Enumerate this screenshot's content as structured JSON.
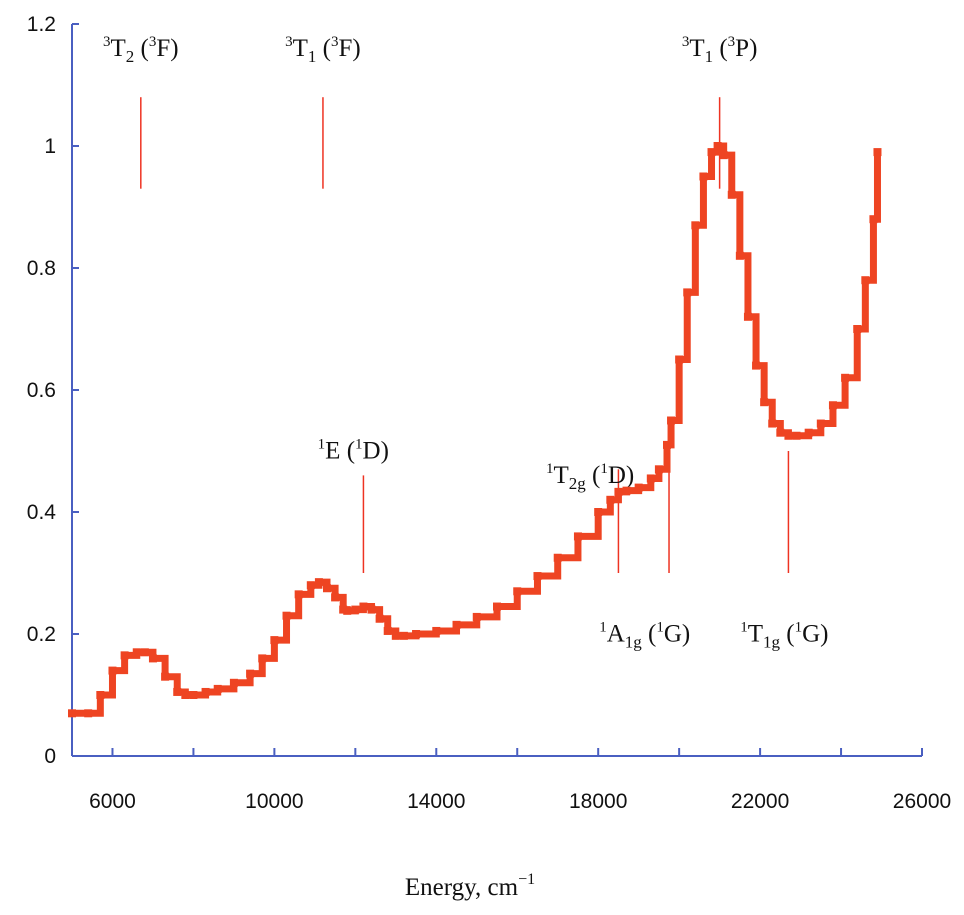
{
  "chart_data": {
    "type": "line",
    "title": "",
    "xlabel": "Energy, cm",
    "xlabel_sup": "−1",
    "ylabel": "",
    "xlim": [
      5000,
      26000
    ],
    "ylim": [
      0,
      1.2
    ],
    "x_ticks": [
      6000,
      10000,
      14000,
      18000,
      22000,
      26000
    ],
    "x_tick_labels": [
      "6000",
      "10000",
      "14000",
      "18000",
      "22000",
      "26000"
    ],
    "y_ticks": [
      0,
      0.2,
      0.4,
      0.6,
      0.8,
      1,
      1.2
    ],
    "y_tick_labels": [
      "0",
      "0.2",
      "0.4",
      "0.6",
      "0.8",
      "1",
      "1.2"
    ],
    "grid": false,
    "colors": {
      "series": "#ee4422",
      "marker": "#ee4422",
      "axis": "#4a5fc1"
    },
    "series": [
      {
        "x": [
          5000,
          5400,
          5700,
          6000,
          6300,
          6600,
          6800,
          7000,
          7300,
          7600,
          7800,
          8000,
          8300,
          8600,
          9000,
          9400,
          9700,
          10000,
          10300,
          10600,
          10900,
          11100,
          11300,
          11500,
          11700,
          11800,
          12000,
          12200,
          12400,
          12600,
          12800,
          13000,
          13200,
          13500,
          14000,
          14500,
          15000,
          15500,
          16000,
          16500,
          17000,
          17500,
          18000,
          18300,
          18500,
          18700,
          19000,
          19300,
          19500,
          19700,
          19800,
          20000,
          20200,
          20400,
          20600,
          20800,
          20950,
          21100,
          21300,
          21500,
          21700,
          21900,
          22100,
          22300,
          22500,
          22700,
          22900,
          23200,
          23500,
          23800,
          24100,
          24400,
          24600,
          24800,
          24900
        ],
        "y": [
          0.07,
          0.07,
          0.1,
          0.14,
          0.165,
          0.17,
          0.17,
          0.16,
          0.13,
          0.105,
          0.1,
          0.1,
          0.105,
          0.11,
          0.12,
          0.135,
          0.16,
          0.19,
          0.23,
          0.265,
          0.28,
          0.285,
          0.275,
          0.26,
          0.24,
          0.238,
          0.24,
          0.245,
          0.24,
          0.225,
          0.205,
          0.197,
          0.197,
          0.2,
          0.205,
          0.215,
          0.228,
          0.245,
          0.27,
          0.295,
          0.325,
          0.36,
          0.4,
          0.42,
          0.433,
          0.435,
          0.44,
          0.455,
          0.47,
          0.51,
          0.55,
          0.65,
          0.76,
          0.87,
          0.95,
          0.99,
          1.0,
          0.985,
          0.92,
          0.82,
          0.72,
          0.64,
          0.58,
          0.545,
          0.53,
          0.525,
          0.525,
          0.53,
          0.545,
          0.575,
          0.62,
          0.7,
          0.78,
          0.88,
          0.99
        ]
      }
    ],
    "annotations": [
      {
        "term": "³T₂ (³F)",
        "x": 6700,
        "line": [
          0.93,
          1.08
        ],
        "label_pos": [
          0.65,
          1.2
        ],
        "sup1": "3",
        "letter": "T",
        "sub": "2",
        "open": " (",
        "sup2": "3",
        "close": "F)"
      },
      {
        "term": "³T₁ (³F)",
        "x": 11200,
        "line": [
          0.93,
          1.08
        ],
        "label_pos": [
          11200,
          1.2
        ],
        "sup1": "3",
        "letter": "T",
        "sub": "1",
        "open": " (",
        "sup2": "3",
        "close": "F)"
      },
      {
        "term": "³T₁ (³P)",
        "x": 21000,
        "line": [
          0.93,
          1.08
        ],
        "label_pos": [
          21000,
          1.2
        ],
        "sup1": "3",
        "letter": "T",
        "sub": "1",
        "open": " (",
        "sup2": "3",
        "close": "P)"
      },
      {
        "term": "¹E (¹D)",
        "x": 12200,
        "line": [
          0.3,
          0.46
        ],
        "label_pos": [
          11950,
          0.54
        ],
        "sup1": "1",
        "letter": "E",
        "sub": "",
        "open": " (",
        "sup2": "1",
        "close": "D)"
      },
      {
        "term": "¹T₂g (¹D)",
        "x": 18500,
        "line": [
          0.3,
          0.47
        ],
        "label_pos": [
          17800,
          0.5
        ],
        "sup1": "1",
        "letter": "T",
        "sub": "2g",
        "open": " (",
        "sup2": "1",
        "close": "D)"
      },
      {
        "term": "¹A₁g (¹G)",
        "x": 19750,
        "line": [
          0.3,
          0.5
        ],
        "label_pos": [
          19150,
          0.24
        ],
        "sup1": "1",
        "letter": "A",
        "sub": "1g",
        "open": " (",
        "sup2": "1",
        "close": "G)"
      },
      {
        "term": "¹T₁g (¹G)",
        "x": 22700,
        "line": [
          0.3,
          0.5
        ],
        "label_pos": [
          22600,
          0.24
        ],
        "sup1": "1",
        "letter": "T",
        "sub": "1g",
        "open": " (",
        "sup2": "1",
        "close": "G)"
      }
    ]
  }
}
